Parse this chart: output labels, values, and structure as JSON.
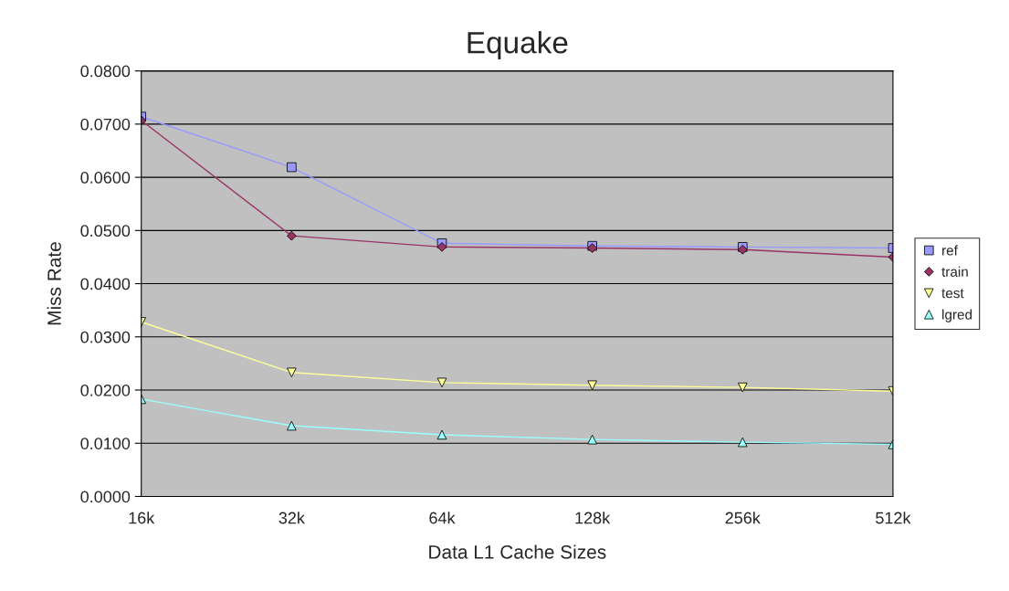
{
  "chart_data": {
    "type": "line",
    "title": "Equake",
    "xlabel": "Data L1 Cache Sizes",
    "ylabel": "Miss Rate",
    "categories": [
      "16k",
      "32k",
      "64k",
      "128k",
      "256k",
      "512k"
    ],
    "series": [
      {
        "name": "ref",
        "color": "#9999ff",
        "marker": "square",
        "values": [
          0.0714,
          0.0619,
          0.0476,
          0.0471,
          0.0469,
          0.0467
        ]
      },
      {
        "name": "train",
        "color": "#993366",
        "marker": "diamond",
        "values": [
          0.0707,
          0.049,
          0.0469,
          0.0467,
          0.0464,
          0.045
        ]
      },
      {
        "name": "test",
        "color": "#ffff99",
        "marker": "triangle_down",
        "values": [
          0.0328,
          0.0233,
          0.0214,
          0.0209,
          0.0205,
          0.0198
        ]
      },
      {
        "name": "lgred",
        "color": "#99ffff",
        "marker": "triangle",
        "values": [
          0.0183,
          0.0133,
          0.0116,
          0.0107,
          0.0102,
          0.0098
        ]
      }
    ],
    "ylim": [
      0,
      0.08
    ],
    "yticks": [
      {
        "value": 0,
        "label": "0.0000"
      },
      {
        "value": 0.01,
        "label": "0.0100"
      },
      {
        "value": 0.02,
        "label": "0.0200"
      },
      {
        "value": 0.03,
        "label": "0.0300"
      },
      {
        "value": 0.04,
        "label": "0.0400"
      },
      {
        "value": 0.05,
        "label": "0.0500"
      },
      {
        "value": 0.06,
        "label": "0.0600"
      },
      {
        "value": 0.07,
        "label": "0.0700"
      },
      {
        "value": 0.08,
        "label": "0.0800"
      }
    ],
    "grid": "y",
    "legend": "right"
  }
}
